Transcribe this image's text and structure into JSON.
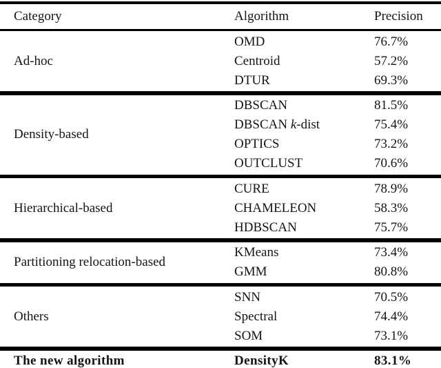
{
  "table": {
    "headers": [
      "Category",
      "Algorithm",
      "Precision"
    ],
    "groups": [
      {
        "category": "Ad-hoc",
        "rows": [
          {
            "algorithm": "OMD",
            "precision": "76.7%"
          },
          {
            "algorithm": "Centroid",
            "precision": "57.2%"
          },
          {
            "algorithm": "DTUR",
            "precision": "69.3%"
          }
        ]
      },
      {
        "category": "Density-based",
        "rows": [
          {
            "algorithm": "DBSCAN",
            "precision": "81.5%"
          },
          {
            "algorithm": "DBSCAN k-dist",
            "algorithm_parts": [
              {
                "text": "DBSCAN "
              },
              {
                "text": "k",
                "italic": true
              },
              {
                "text": "-dist"
              }
            ],
            "precision": "75.4%"
          },
          {
            "algorithm": "OPTICS",
            "precision": "73.2%"
          },
          {
            "algorithm": "OUTCLUST",
            "precision": "70.6%"
          }
        ]
      },
      {
        "category": "Hierarchical-based",
        "rows": [
          {
            "algorithm": "CURE",
            "precision": "78.9%"
          },
          {
            "algorithm": "CHAMELEON",
            "precision": "58.3%"
          },
          {
            "algorithm": "HDBSCAN",
            "precision": "75.7%"
          }
        ]
      },
      {
        "category": "Partitioning relocation-based",
        "rows": [
          {
            "algorithm": "KMeans",
            "precision": "73.4%"
          },
          {
            "algorithm": "GMM",
            "precision": "80.8%"
          }
        ]
      },
      {
        "category": "Others",
        "rows": [
          {
            "algorithm": "SNN",
            "precision": "70.5%"
          },
          {
            "algorithm": "Spectral",
            "precision": "74.4%"
          },
          {
            "algorithm": "SOM",
            "precision": "73.1%"
          }
        ]
      }
    ],
    "footer": {
      "category": "The new algorithm",
      "algorithm": "DensityK",
      "precision": "83.1%"
    }
  }
}
